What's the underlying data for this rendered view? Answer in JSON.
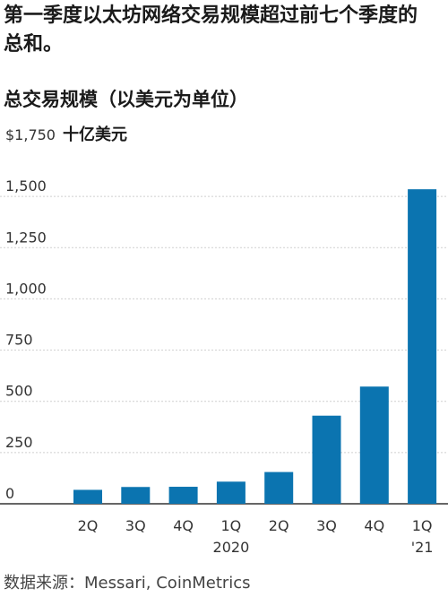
{
  "headline": "第一季度以太坊网络交易规模超过前七个季度的总和。",
  "subtitle": "总交易规模（以美元为单位）",
  "source": "数据来源：Messari, CoinMetrics",
  "colors": {
    "bar": "#0b74b0",
    "grid": "#cfcfcf",
    "axis": "#333333"
  },
  "chart_data": {
    "type": "bar",
    "categories": [
      "2Q",
      "3Q",
      "4Q",
      "1Q",
      "2Q",
      "3Q",
      "4Q",
      "1Q"
    ],
    "category_sublabels": [
      "",
      "",
      "",
      "2020",
      "",
      "",
      "",
      "'21"
    ],
    "values": [
      68,
      82,
      83,
      108,
      155,
      430,
      572,
      1535
    ],
    "unit_label": "十亿美元",
    "ylim": [
      0,
      1750
    ],
    "yticks": [
      0,
      250,
      500,
      750,
      1000,
      1250,
      1500,
      1750
    ],
    "ytick_labels": [
      "0",
      "250",
      "500",
      "750",
      "1,000",
      "1,250",
      "1,500",
      "$1,750"
    ],
    "grid": true
  }
}
